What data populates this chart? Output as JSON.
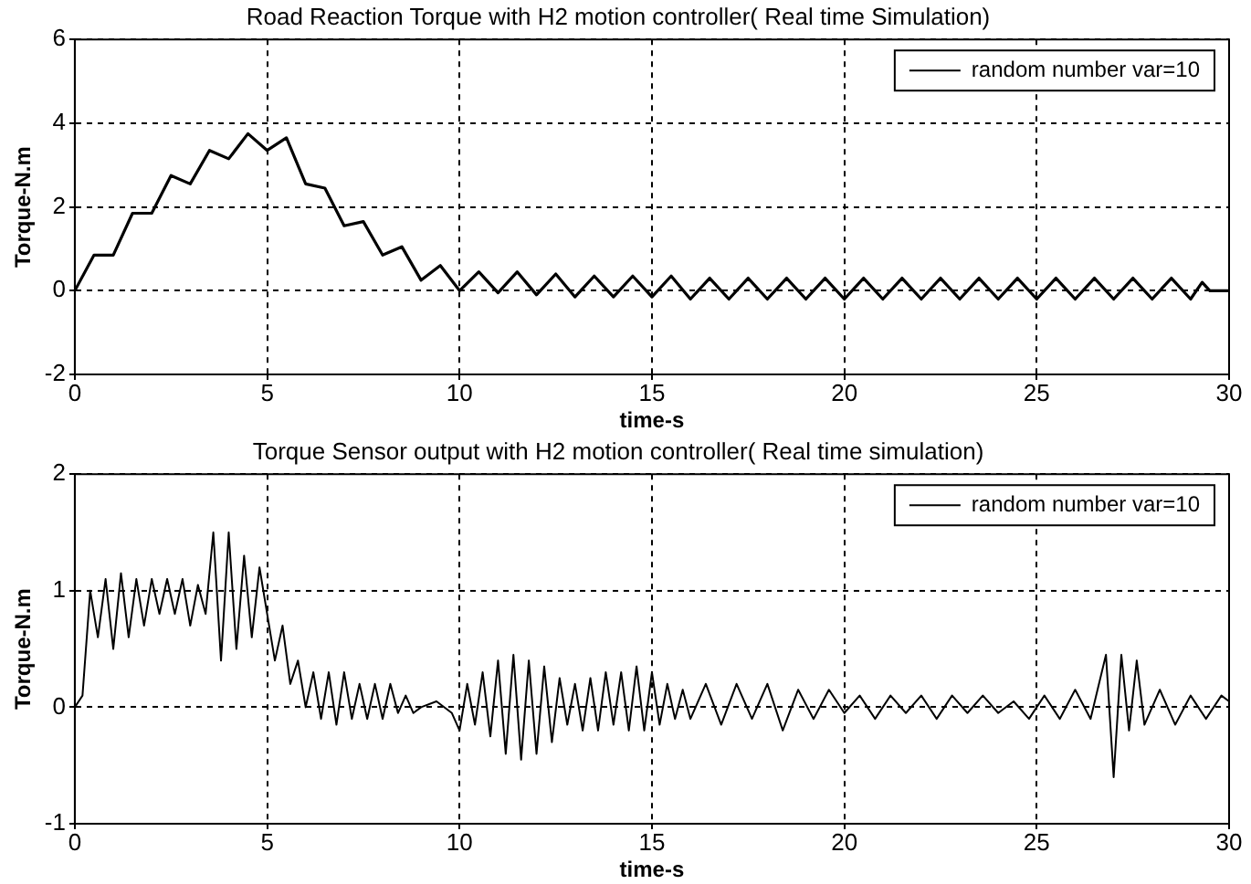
{
  "chart_data": [
    {
      "type": "line",
      "title": "Road Reaction Torque with H2 motion controller( Real time Simulation)",
      "xlabel": "time-s",
      "ylabel": "Torque-N.m",
      "x": [
        0,
        0.5,
        1,
        1.5,
        2,
        2.5,
        3,
        3.5,
        4,
        4.5,
        5,
        5.5,
        6,
        6.5,
        7,
        7.5,
        8,
        8.5,
        9,
        9.5,
        10,
        10.5,
        11,
        11.5,
        12,
        12.5,
        13,
        13.5,
        14,
        14.5,
        15,
        15.5,
        16,
        16.5,
        17,
        17.5,
        18,
        18.5,
        19,
        19.5,
        20,
        20.5,
        21,
        21.5,
        22,
        22.5,
        23,
        23.5,
        24,
        24.5,
        25,
        25.5,
        26,
        26.5,
        27,
        27.5,
        28,
        28.5,
        29,
        29.3,
        29.5,
        30
      ],
      "series": [
        {
          "name": "random number var=10",
          "color": "#000000",
          "values": [
            0,
            0.85,
            0.85,
            1.85,
            1.85,
            2.75,
            2.55,
            3.35,
            3.15,
            3.75,
            3.35,
            3.65,
            2.55,
            2.45,
            1.55,
            1.65,
            0.85,
            1.05,
            0.25,
            0.6,
            0,
            0.45,
            -0.05,
            0.45,
            -0.1,
            0.4,
            -0.15,
            0.35,
            -0.15,
            0.35,
            -0.15,
            0.35,
            -0.2,
            0.3,
            -0.2,
            0.3,
            -0.2,
            0.3,
            -0.2,
            0.3,
            -0.2,
            0.3,
            -0.2,
            0.3,
            -0.2,
            0.3,
            -0.2,
            0.3,
            -0.2,
            0.3,
            -0.2,
            0.3,
            -0.2,
            0.3,
            -0.2,
            0.3,
            -0.2,
            0.3,
            -0.2,
            0.2,
            0,
            0
          ]
        }
      ],
      "xlim": [
        0,
        30
      ],
      "xticks": [
        0,
        5,
        10,
        15,
        20,
        25,
        30
      ],
      "ylim": [
        -2,
        6
      ],
      "yticks": [
        -2,
        0,
        2,
        4,
        6
      ],
      "grid": true,
      "legend": "top right",
      "marker": "none",
      "line_style": "solid"
    },
    {
      "type": "line",
      "title": "Torque Sensor output with H2 motion controller( Real time simulation)",
      "xlabel": "time-s",
      "ylabel": "Torque-N.m",
      "x": [
        0,
        0.2,
        0.4,
        0.6,
        0.8,
        1.0,
        1.2,
        1.4,
        1.6,
        1.8,
        2.0,
        2.2,
        2.4,
        2.6,
        2.8,
        3.0,
        3.2,
        3.4,
        3.6,
        3.8,
        4.0,
        4.2,
        4.4,
        4.6,
        4.8,
        5.0,
        5.2,
        5.4,
        5.6,
        5.8,
        6.0,
        6.2,
        6.4,
        6.6,
        6.8,
        7.0,
        7.2,
        7.4,
        7.6,
        7.8,
        8.0,
        8.2,
        8.4,
        8.6,
        8.8,
        9.0,
        9.4,
        9.8,
        10.0,
        10.2,
        10.4,
        10.6,
        10.8,
        11.0,
        11.2,
        11.4,
        11.6,
        11.8,
        12.0,
        12.2,
        12.4,
        12.6,
        12.8,
        13.0,
        13.2,
        13.4,
        13.6,
        13.8,
        14.0,
        14.2,
        14.4,
        14.6,
        14.8,
        15.0,
        15.2,
        15.4,
        15.6,
        15.8,
        16.0,
        16.4,
        16.8,
        17.2,
        17.6,
        18.0,
        18.4,
        18.8,
        19.2,
        19.6,
        20.0,
        20.4,
        20.8,
        21.2,
        21.6,
        22.0,
        22.4,
        22.8,
        23.2,
        23.6,
        24.0,
        24.4,
        24.8,
        25.2,
        25.6,
        26.0,
        26.4,
        26.8,
        27.0,
        27.2,
        27.4,
        27.6,
        27.8,
        28.2,
        28.6,
        29.0,
        29.4,
        29.8,
        30
      ],
      "series": [
        {
          "name": "random number var=10",
          "color": "#000000",
          "values": [
            0,
            0.1,
            1.0,
            0.6,
            1.1,
            0.5,
            1.15,
            0.6,
            1.1,
            0.7,
            1.1,
            0.8,
            1.1,
            0.8,
            1.1,
            0.7,
            1.05,
            0.8,
            1.5,
            0.4,
            1.5,
            0.5,
            1.3,
            0.6,
            1.2,
            0.8,
            0.4,
            0.7,
            0.2,
            0.4,
            0,
            0.3,
            -0.1,
            0.3,
            -0.15,
            0.3,
            -0.1,
            0.2,
            -0.1,
            0.2,
            -0.1,
            0.2,
            -0.05,
            0.1,
            -0.05,
            0,
            0.05,
            -0.05,
            -0.2,
            0.2,
            -0.15,
            0.3,
            -0.25,
            0.4,
            -0.4,
            0.45,
            -0.45,
            0.4,
            -0.4,
            0.35,
            -0.3,
            0.25,
            -0.15,
            0.2,
            -0.2,
            0.25,
            -0.2,
            0.3,
            -0.15,
            0.3,
            -0.2,
            0.35,
            -0.2,
            0.3,
            -0.15,
            0.2,
            -0.1,
            0.15,
            -0.1,
            0.2,
            -0.15,
            0.2,
            -0.1,
            0.2,
            -0.2,
            0.15,
            -0.1,
            0.15,
            -0.05,
            0.1,
            -0.1,
            0.1,
            -0.05,
            0.1,
            -0.1,
            0.1,
            -0.05,
            0.1,
            -0.05,
            0.05,
            -0.1,
            0.1,
            -0.1,
            0.15,
            -0.1,
            0.45,
            -0.6,
            0.45,
            -0.2,
            0.4,
            -0.15,
            0.15,
            -0.15,
            0.1,
            -0.1,
            0.1,
            0.05
          ]
        }
      ],
      "xlim": [
        0,
        30
      ],
      "xticks": [
        0,
        5,
        10,
        15,
        20,
        25,
        30
      ],
      "ylim": [
        -1,
        2
      ],
      "yticks": [
        -1,
        0,
        1,
        2
      ],
      "grid": true,
      "legend": "top right",
      "marker": "none",
      "line_style": "solid"
    }
  ]
}
